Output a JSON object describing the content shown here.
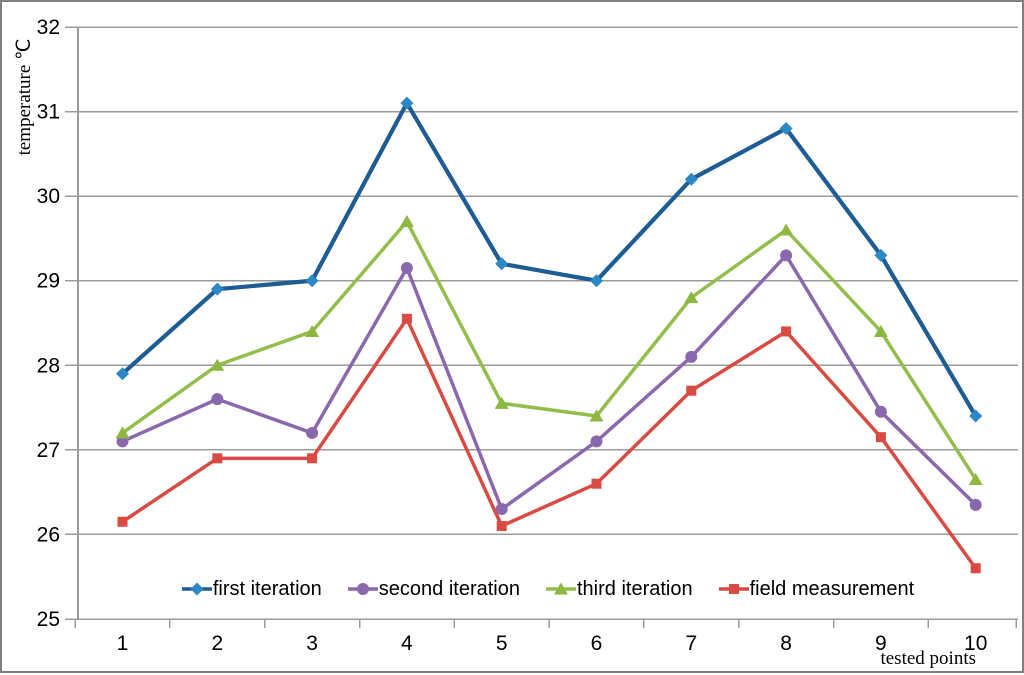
{
  "chart_data": {
    "type": "line",
    "title": "",
    "xlabel": "tested points",
    "ylabel": "temperature ℃",
    "x_categories": [
      "1",
      "2",
      "3",
      "4",
      "5",
      "6",
      "7",
      "8",
      "9",
      "10"
    ],
    "ylim": [
      25,
      32
    ],
    "yticks": [
      25,
      26,
      27,
      28,
      29,
      30,
      31,
      32
    ],
    "grid": "horizontal",
    "legend_position": "bottom-inside",
    "axis_color": "#9B9B9B",
    "series": [
      {
        "name": "first iteration",
        "marker": "diamond",
        "line_color": "#1E5C94",
        "marker_color": "#2C87C6",
        "values": [
          27.9,
          28.9,
          29.0,
          31.1,
          29.2,
          29.0,
          30.2,
          30.8,
          29.3,
          27.4
        ]
      },
      {
        "name": "second iteration",
        "marker": "circle",
        "line_color": "#8B67AD",
        "marker_color": "#8B67AD",
        "values": [
          27.1,
          27.6,
          27.2,
          29.15,
          26.3,
          27.1,
          28.1,
          29.3,
          27.45,
          26.35
        ]
      },
      {
        "name": "third iteration",
        "marker": "triangle",
        "line_color": "#92BE4B",
        "marker_color": "#8CB83F",
        "values": [
          27.2,
          28.0,
          28.4,
          29.7,
          27.55,
          27.4,
          28.8,
          29.6,
          28.4,
          26.65
        ]
      },
      {
        "name": "field measurement",
        "marker": "square",
        "line_color": "#D94A42",
        "marker_color": "#D94A42",
        "values": [
          26.15,
          26.9,
          26.9,
          28.55,
          26.1,
          26.6,
          27.7,
          28.4,
          27.15,
          25.6
        ]
      }
    ]
  }
}
